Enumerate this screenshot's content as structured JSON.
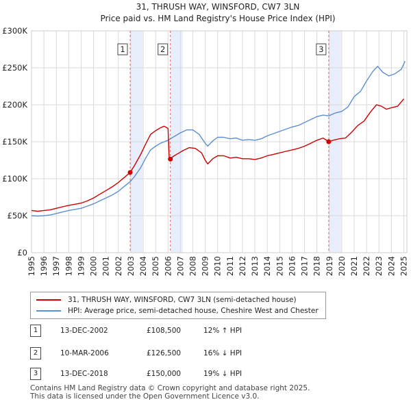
{
  "chart_data": {
    "type": "line",
    "title": "31, THRUSH WAY, WINSFORD, CW7 3LN",
    "subtitle": "Price paid vs. HM Land Registry's House Price Index (HPI)",
    "xlabel": "",
    "ylabel": "",
    "xlim": [
      1995,
      2025.25
    ],
    "ylim": [
      0,
      300000
    ],
    "x_ticks": [
      1995,
      1996,
      1997,
      1998,
      1999,
      2000,
      2001,
      2002,
      2003,
      2004,
      2005,
      2006,
      2007,
      2008,
      2009,
      2010,
      2011,
      2012,
      2013,
      2014,
      2015,
      2016,
      2017,
      2018,
      2019,
      2020,
      2021,
      2022,
      2023,
      2024,
      2025
    ],
    "y_ticks": [
      {
        "value": 0,
        "label": "£0"
      },
      {
        "value": 50000,
        "label": "£50K"
      },
      {
        "value": 100000,
        "label": "£100K"
      },
      {
        "value": 150000,
        "label": "£150K"
      },
      {
        "value": 200000,
        "label": "£200K"
      },
      {
        "value": 250000,
        "label": "£250K"
      },
      {
        "value": 300000,
        "label": "£300K"
      }
    ],
    "grid": true,
    "series": [
      {
        "name": "31, THRUSH WAY, WINSFORD, CW7 3LN (semi-detached house)",
        "color": "#cc0000",
        "points": [
          [
            1995.0,
            57000
          ],
          [
            1995.5,
            56000
          ],
          [
            1996.0,
            57000
          ],
          [
            1996.5,
            58000
          ],
          [
            1997.0,
            60000
          ],
          [
            1997.5,
            62000
          ],
          [
            1998.0,
            64000
          ],
          [
            1998.5,
            65500
          ],
          [
            1999.0,
            67000
          ],
          [
            1999.5,
            70000
          ],
          [
            2000.0,
            74000
          ],
          [
            2000.5,
            79000
          ],
          [
            2001.0,
            84000
          ],
          [
            2001.5,
            89000
          ],
          [
            2002.0,
            95000
          ],
          [
            2002.5,
            102000
          ],
          [
            2002.95,
            108500
          ],
          [
            2003.3,
            118000
          ],
          [
            2003.8,
            133000
          ],
          [
            2004.2,
            147000
          ],
          [
            2004.6,
            160000
          ],
          [
            2005.0,
            165000
          ],
          [
            2005.4,
            169000
          ],
          [
            2005.7,
            171000
          ],
          [
            2006.0,
            168000
          ],
          [
            2006.1,
            127000
          ],
          [
            2006.19,
            126500
          ],
          [
            2006.4,
            130000
          ],
          [
            2006.8,
            134000
          ],
          [
            2007.2,
            138000
          ],
          [
            2007.7,
            142000
          ],
          [
            2008.2,
            141000
          ],
          [
            2008.7,
            135000
          ],
          [
            2009.0,
            125000
          ],
          [
            2009.2,
            120000
          ],
          [
            2009.6,
            127000
          ],
          [
            2010.0,
            131000
          ],
          [
            2010.5,
            131000
          ],
          [
            2011.0,
            128000
          ],
          [
            2011.5,
            129000
          ],
          [
            2012.0,
            127000
          ],
          [
            2012.5,
            127000
          ],
          [
            2013.0,
            126000
          ],
          [
            2013.5,
            128000
          ],
          [
            2014.0,
            131000
          ],
          [
            2014.5,
            133000
          ],
          [
            2015.0,
            135000
          ],
          [
            2015.5,
            137000
          ],
          [
            2016.0,
            139000
          ],
          [
            2016.5,
            141000
          ],
          [
            2017.0,
            144000
          ],
          [
            2017.5,
            148000
          ],
          [
            2018.0,
            152000
          ],
          [
            2018.5,
            155000
          ],
          [
            2018.95,
            150000
          ],
          [
            2019.3,
            152000
          ],
          [
            2019.8,
            154000
          ],
          [
            2020.3,
            155000
          ],
          [
            2020.8,
            163000
          ],
          [
            2021.3,
            172000
          ],
          [
            2021.8,
            178000
          ],
          [
            2022.3,
            190000
          ],
          [
            2022.8,
            200000
          ],
          [
            2023.2,
            198000
          ],
          [
            2023.6,
            194000
          ],
          [
            2024.0,
            196000
          ],
          [
            2024.5,
            198000
          ],
          [
            2025.0,
            208000
          ]
        ]
      },
      {
        "name": "HPI: Average price, semi-detached house, Cheshire West and Chester",
        "color": "#5b8fcf",
        "points": [
          [
            1995.0,
            50000
          ],
          [
            1995.5,
            49500
          ],
          [
            1996.0,
            50000
          ],
          [
            1996.5,
            51000
          ],
          [
            1997.0,
            53000
          ],
          [
            1997.5,
            55000
          ],
          [
            1998.0,
            57000
          ],
          [
            1998.5,
            58500
          ],
          [
            1999.0,
            60000
          ],
          [
            1999.5,
            63000
          ],
          [
            2000.0,
            66000
          ],
          [
            2000.5,
            70000
          ],
          [
            2001.0,
            74000
          ],
          [
            2001.5,
            78000
          ],
          [
            2002.0,
            83000
          ],
          [
            2002.5,
            90000
          ],
          [
            2002.95,
            96000
          ],
          [
            2003.3,
            103000
          ],
          [
            2003.8,
            115000
          ],
          [
            2004.2,
            128000
          ],
          [
            2004.6,
            139000
          ],
          [
            2005.0,
            144000
          ],
          [
            2005.4,
            148000
          ],
          [
            2005.7,
            150000
          ],
          [
            2006.0,
            152000
          ],
          [
            2006.5,
            157000
          ],
          [
            2007.0,
            162000
          ],
          [
            2007.5,
            166000
          ],
          [
            2008.0,
            166000
          ],
          [
            2008.5,
            160000
          ],
          [
            2009.0,
            148000
          ],
          [
            2009.2,
            144000
          ],
          [
            2009.6,
            151000
          ],
          [
            2010.0,
            156000
          ],
          [
            2010.5,
            156000
          ],
          [
            2011.0,
            154000
          ],
          [
            2011.5,
            155000
          ],
          [
            2012.0,
            152000
          ],
          [
            2012.5,
            153000
          ],
          [
            2013.0,
            152000
          ],
          [
            2013.5,
            154000
          ],
          [
            2014.0,
            158000
          ],
          [
            2014.5,
            161000
          ],
          [
            2015.0,
            164000
          ],
          [
            2015.5,
            167000
          ],
          [
            2016.0,
            170000
          ],
          [
            2016.5,
            172000
          ],
          [
            2017.0,
            176000
          ],
          [
            2017.5,
            180000
          ],
          [
            2018.0,
            184000
          ],
          [
            2018.5,
            186000
          ],
          [
            2018.95,
            185000
          ],
          [
            2019.5,
            189000
          ],
          [
            2020.0,
            191000
          ],
          [
            2020.5,
            197000
          ],
          [
            2021.0,
            211000
          ],
          [
            2021.5,
            218000
          ],
          [
            2022.0,
            232000
          ],
          [
            2022.5,
            245000
          ],
          [
            2022.9,
            252000
          ],
          [
            2023.3,
            244000
          ],
          [
            2023.8,
            239000
          ],
          [
            2024.3,
            242000
          ],
          [
            2024.8,
            248000
          ],
          [
            2025.1,
            259000
          ]
        ]
      }
    ],
    "sales": [
      {
        "label": "1",
        "x": 2002.95,
        "price": 108500
      },
      {
        "label": "2",
        "x": 2006.19,
        "price": 126500
      },
      {
        "label": "3",
        "x": 2018.95,
        "price": 150000
      }
    ]
  },
  "legend": {
    "property_label": "31, THRUSH WAY, WINSFORD, CW7 3LN (semi-detached house)",
    "hpi_label": "HPI: Average price, semi-detached house, Cheshire West and Chester"
  },
  "transactions": [
    {
      "num": "1",
      "date": "13-DEC-2002",
      "price": "£108,500",
      "hpi": "12% ↑ HPI"
    },
    {
      "num": "2",
      "date": "10-MAR-2006",
      "price": "£126,500",
      "hpi": "16% ↓ HPI"
    },
    {
      "num": "3",
      "date": "13-DEC-2018",
      "price": "£150,000",
      "hpi": "19% ↓ HPI"
    }
  ],
  "footer": {
    "line1": "Contains HM Land Registry data © Crown copyright and database right 2025.",
    "line2": "This data is licensed under the Open Government Licence v3.0."
  },
  "colors": {
    "property": "#cc0000",
    "hpi": "#5b8fcf",
    "shade": "#e8eefb",
    "sale_line": "#e06666"
  }
}
